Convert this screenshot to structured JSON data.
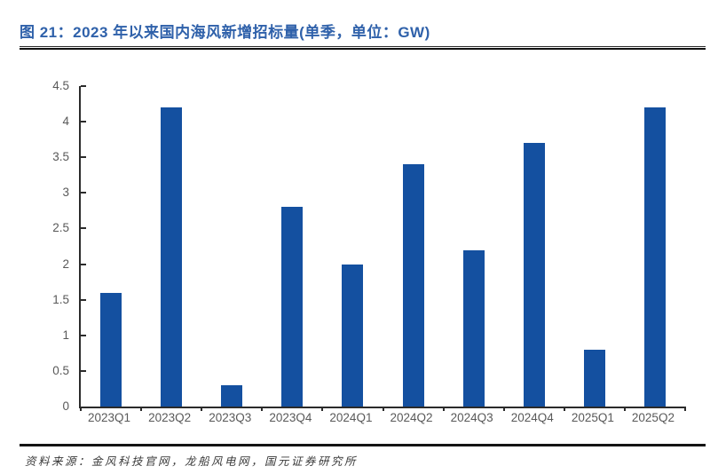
{
  "page": {
    "title": "图 21：2023 年以来国内海风新增招标量(单季，单位：GW)",
    "source": "资料来源：金风科技官网，龙船风电网，国元证券研究所"
  },
  "colors": {
    "bar": "#1450A0",
    "title_text": "#2F61AA",
    "axis": "#2b2b2b",
    "tick_label": "#595959",
    "rule": "#141414"
  },
  "chart_data": {
    "type": "bar",
    "title": "2023 年以来国内海风新增招标量(单季，单位：GW)",
    "categories": [
      "2023Q1",
      "2023Q2",
      "2023Q3",
      "2023Q4",
      "2024Q1",
      "2024Q2",
      "2024Q3",
      "2024Q4",
      "2025Q1",
      "2025Q2"
    ],
    "values": [
      1.6,
      4.2,
      0.3,
      2.8,
      2.0,
      3.4,
      2.2,
      3.7,
      0.8,
      4.2
    ],
    "xlabel": "",
    "ylabel": "",
    "unit": "GW",
    "ylim": [
      0,
      4.5
    ],
    "ytick_step": 0.5,
    "yticks": [
      "0",
      "0.5",
      "1",
      "1.5",
      "2",
      "2.5",
      "3",
      "3.5",
      "4",
      "4.5"
    ],
    "grid": false,
    "legend": false
  }
}
